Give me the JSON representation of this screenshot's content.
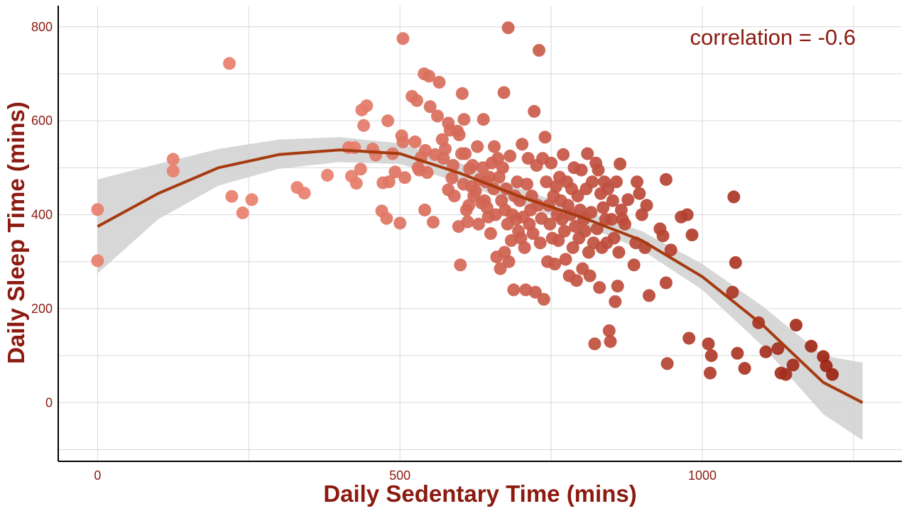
{
  "chart_data": {
    "type": "scatter",
    "xlabel": "Daily Sedentary Time (mins)",
    "ylabel": "Daily Sleep Time (mins)",
    "annotation": "correlation = -0.6",
    "xlim": [
      -65,
      1330
    ],
    "ylim": [
      -125,
      845
    ],
    "x_ticks": [
      0,
      500,
      1000
    ],
    "y_ticks": [
      0,
      200,
      400,
      600,
      800
    ],
    "grid": true,
    "legend": "none",
    "colors": {
      "point_low": "#E8806E",
      "point_high": "#9A2212",
      "trend_line": "#A63A10",
      "confidence_band": "#D0D0D0",
      "grid": "#D9D9D9",
      "text": "#8B1A10"
    },
    "points": [
      [
        0,
        411
      ],
      [
        0,
        302
      ],
      [
        125,
        518
      ],
      [
        125,
        493
      ],
      [
        218,
        722
      ],
      [
        222,
        439
      ],
      [
        240,
        404
      ],
      [
        255,
        432
      ],
      [
        330,
        458
      ],
      [
        342,
        446
      ],
      [
        380,
        484
      ],
      [
        415,
        543
      ],
      [
        420,
        482
      ],
      [
        425,
        543
      ],
      [
        428,
        467
      ],
      [
        435,
        497
      ],
      [
        437,
        623
      ],
      [
        440,
        590
      ],
      [
        445,
        632
      ],
      [
        455,
        540
      ],
      [
        460,
        527
      ],
      [
        470,
        408
      ],
      [
        472,
        468
      ],
      [
        478,
        392
      ],
      [
        480,
        600
      ],
      [
        482,
        470
      ],
      [
        488,
        530
      ],
      [
        492,
        491
      ],
      [
        500,
        382
      ],
      [
        503,
        568
      ],
      [
        505,
        555
      ],
      [
        505,
        775
      ],
      [
        508,
        479
      ],
      [
        520,
        652
      ],
      [
        525,
        555
      ],
      [
        528,
        643
      ],
      [
        530,
        500
      ],
      [
        532,
        495
      ],
      [
        535,
        522
      ],
      [
        540,
        700
      ],
      [
        541,
        410
      ],
      [
        542,
        537
      ],
      [
        545,
        490
      ],
      [
        548,
        695
      ],
      [
        550,
        630
      ],
      [
        555,
        384
      ],
      [
        558,
        528
      ],
      [
        562,
        610
      ],
      [
        565,
        682
      ],
      [
        570,
        560
      ],
      [
        572,
        520
      ],
      [
        575,
        540
      ],
      [
        580,
        595
      ],
      [
        580,
        453
      ],
      [
        583,
        580
      ],
      [
        586,
        478
      ],
      [
        588,
        505
      ],
      [
        590,
        440
      ],
      [
        595,
        578
      ],
      [
        597,
        375
      ],
      [
        598,
        570
      ],
      [
        600,
        293
      ],
      [
        602,
        530
      ],
      [
        603,
        658
      ],
      [
        605,
        465
      ],
      [
        606,
        603
      ],
      [
        608,
        530
      ],
      [
        610,
        410
      ],
      [
        612,
        385
      ],
      [
        614,
        420
      ],
      [
        615,
        498
      ],
      [
        618,
        460
      ],
      [
        620,
        505
      ],
      [
        622,
        440
      ],
      [
        625,
        450
      ],
      [
        628,
        545
      ],
      [
        630,
        380
      ],
      [
        632,
        475
      ],
      [
        635,
        425
      ],
      [
        637,
        500
      ],
      [
        638,
        603
      ],
      [
        640,
        430
      ],
      [
        642,
        470
      ],
      [
        644,
        415
      ],
      [
        646,
        395
      ],
      [
        648,
        480
      ],
      [
        650,
        360
      ],
      [
        652,
        510
      ],
      [
        655,
        455
      ],
      [
        656,
        545
      ],
      [
        658,
        400
      ],
      [
        660,
        310
      ],
      [
        662,
        520
      ],
      [
        664,
        480
      ],
      [
        666,
        285
      ],
      [
        668,
        430
      ],
      [
        670,
        500
      ],
      [
        672,
        660
      ],
      [
        673,
        320
      ],
      [
        674,
        410
      ],
      [
        676,
        455
      ],
      [
        678,
        380
      ],
      [
        679,
        798
      ],
      [
        680,
        300
      ],
      [
        682,
        525
      ],
      [
        684,
        345
      ],
      [
        686,
        400
      ],
      [
        688,
        240
      ],
      [
        690,
        440
      ],
      [
        692,
        390
      ],
      [
        694,
        470
      ],
      [
        696,
        365
      ],
      [
        698,
        430
      ],
      [
        700,
        350
      ],
      [
        702,
        550
      ],
      [
        704,
        395
      ],
      [
        706,
        330
      ],
      [
        708,
        240
      ],
      [
        710,
        465
      ],
      [
        712,
        520
      ],
      [
        714,
        380
      ],
      [
        716,
        410
      ],
      [
        718,
        440
      ],
      [
        720,
        360
      ],
      [
        722,
        620
      ],
      [
        724,
        235
      ],
      [
        726,
        505
      ],
      [
        728,
        420
      ],
      [
        730,
        750
      ],
      [
        732,
        340
      ],
      [
        734,
        392
      ],
      [
        736,
        520
      ],
      [
        738,
        220
      ],
      [
        740,
        565
      ],
      [
        742,
        470
      ],
      [
        744,
        300
      ],
      [
        746,
        420
      ],
      [
        748,
        380
      ],
      [
        750,
        510
      ],
      [
        752,
        350
      ],
      [
        754,
        440
      ],
      [
        756,
        295
      ],
      [
        758,
        460
      ],
      [
        760,
        400
      ],
      [
        762,
        345
      ],
      [
        764,
        480
      ],
      [
        766,
        430
      ],
      [
        768,
        390
      ],
      [
        770,
        528
      ],
      [
        772,
        365
      ],
      [
        774,
        305
      ],
      [
        776,
        470
      ],
      [
        778,
        420
      ],
      [
        780,
        270
      ],
      [
        782,
        400
      ],
      [
        784,
        455
      ],
      [
        786,
        330
      ],
      [
        788,
        500
      ],
      [
        790,
        375
      ],
      [
        792,
        260
      ],
      [
        794,
        440
      ],
      [
        796,
        350
      ],
      [
        798,
        410
      ],
      [
        800,
        495
      ],
      [
        802,
        285
      ],
      [
        804,
        390
      ],
      [
        806,
        365
      ],
      [
        808,
        455
      ],
      [
        810,
        530
      ],
      [
        812,
        320
      ],
      [
        814,
        270
      ],
      [
        816,
        405
      ],
      [
        818,
        470
      ],
      [
        820,
        340
      ],
      [
        822,
        125
      ],
      [
        824,
        510
      ],
      [
        826,
        370
      ],
      [
        828,
        495
      ],
      [
        830,
        245
      ],
      [
        832,
        445
      ],
      [
        834,
        330
      ],
      [
        836,
        415
      ],
      [
        838,
        470
      ],
      [
        840,
        390
      ],
      [
        842,
        340
      ],
      [
        844,
        455
      ],
      [
        846,
        153
      ],
      [
        848,
        130
      ],
      [
        850,
        390
      ],
      [
        852,
        430
      ],
      [
        854,
        350
      ],
      [
        856,
        215
      ],
      [
        858,
        470
      ],
      [
        860,
        248
      ],
      [
        862,
        320
      ],
      [
        864,
        508
      ],
      [
        866,
        410
      ],
      [
        868,
        390
      ],
      [
        872,
        380
      ],
      [
        877,
        432
      ],
      [
        887,
        293
      ],
      [
        890,
        340
      ],
      [
        892,
        470
      ],
      [
        896,
        445
      ],
      [
        900,
        400
      ],
      [
        905,
        330
      ],
      [
        908,
        420
      ],
      [
        912,
        228
      ],
      [
        930,
        370
      ],
      [
        935,
        355
      ],
      [
        940,
        475
      ],
      [
        940,
        255
      ],
      [
        942,
        83
      ],
      [
        948,
        325
      ],
      [
        965,
        395
      ],
      [
        975,
        400
      ],
      [
        978,
        137
      ],
      [
        983,
        357
      ],
      [
        1010,
        125
      ],
      [
        1013,
        63
      ],
      [
        1015,
        100
      ],
      [
        1050,
        235
      ],
      [
        1052,
        438
      ],
      [
        1055,
        298
      ],
      [
        1058,
        105
      ],
      [
        1070,
        73
      ],
      [
        1093,
        170
      ],
      [
        1105,
        108
      ],
      [
        1125,
        115
      ],
      [
        1130,
        63
      ],
      [
        1138,
        60
      ],
      [
        1150,
        80
      ],
      [
        1155,
        165
      ],
      [
        1180,
        120
      ],
      [
        1200,
        98
      ],
      [
        1205,
        78
      ],
      [
        1215,
        60
      ]
    ],
    "trend_line": {
      "x": [
        0,
        100,
        200,
        300,
        400,
        500,
        600,
        700,
        800,
        900,
        1000,
        1100,
        1200,
        1265
      ],
      "y": [
        375,
        445,
        500,
        528,
        538,
        530,
        488,
        438,
        395,
        345,
        268,
        165,
        43,
        0
      ]
    },
    "confidence_band": {
      "x": [
        0,
        100,
        200,
        300,
        400,
        500,
        600,
        700,
        800,
        900,
        1000,
        1100,
        1200,
        1265
      ],
      "upper": [
        475,
        508,
        540,
        560,
        565,
        552,
        510,
        455,
        410,
        365,
        295,
        205,
        100,
        85
      ],
      "lower": [
        275,
        390,
        462,
        498,
        512,
        508,
        468,
        420,
        380,
        325,
        240,
        120,
        -25,
        -80
      ]
    }
  }
}
